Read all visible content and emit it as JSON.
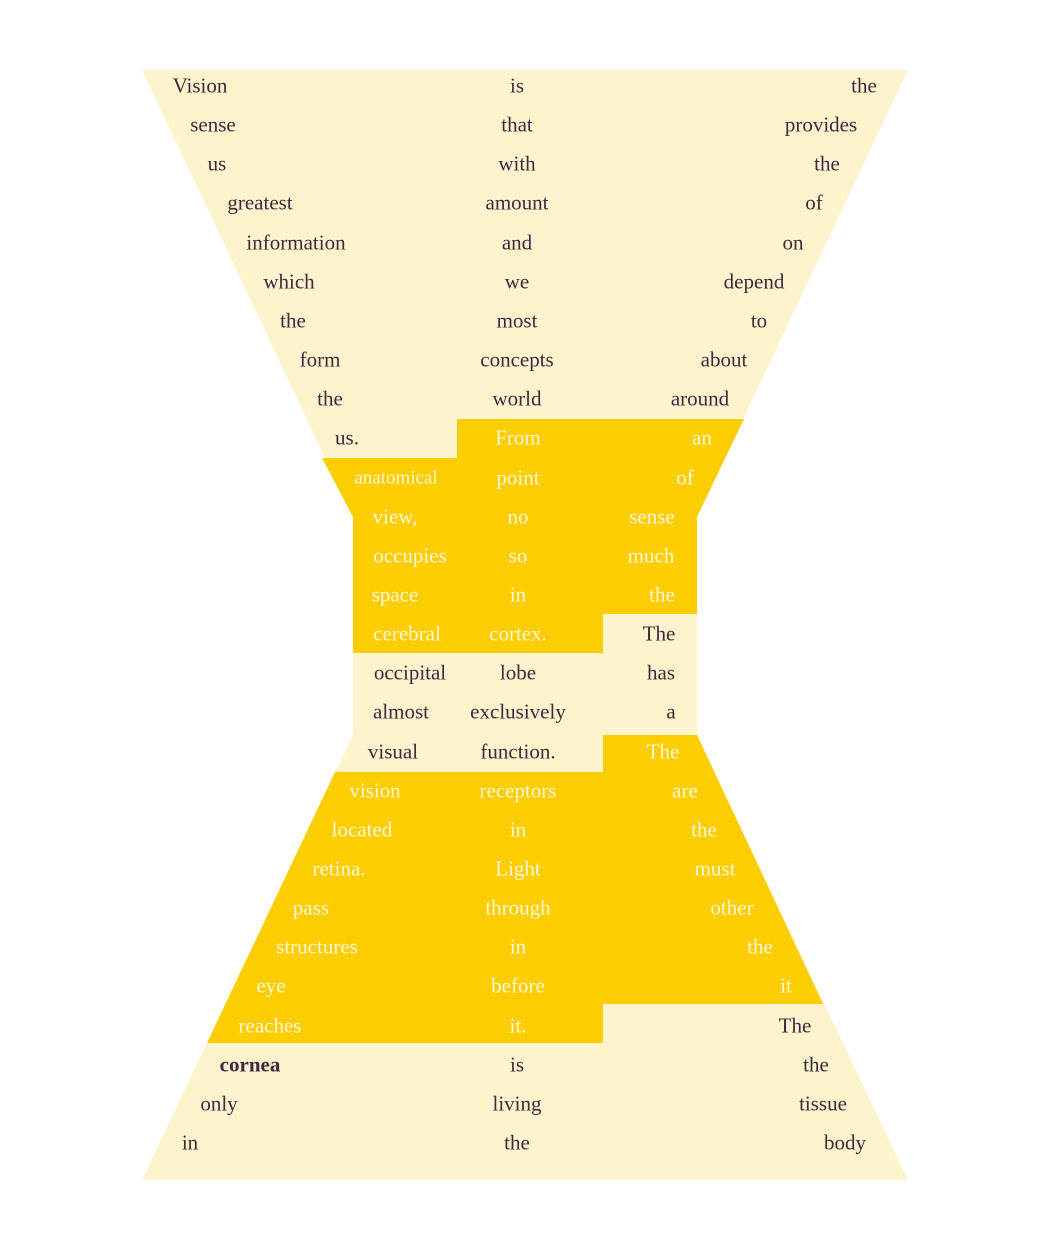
{
  "colors": {
    "cream": "#fdf3cc",
    "gold": "#fccd00",
    "dark_text": "#3a2c40",
    "light_text": "#fff6d6"
  },
  "words": [
    [
      "Vision",
      "is",
      "the"
    ],
    [
      "sense",
      "that",
      "provides"
    ],
    [
      "us",
      "with",
      "the"
    ],
    [
      "greatest",
      "amount",
      "of"
    ],
    [
      "information",
      "and",
      "on"
    ],
    [
      "which",
      "we",
      "depend"
    ],
    [
      "the",
      "most",
      "to"
    ],
    [
      "form",
      "concepts",
      "about"
    ],
    [
      "the",
      "world",
      "around"
    ],
    [
      "us.",
      "From",
      "an"
    ],
    [
      "anatomical",
      "point",
      "of"
    ],
    [
      "view,",
      "no",
      "sense"
    ],
    [
      "occupies",
      "so",
      "much"
    ],
    [
      "space",
      "in",
      "the"
    ],
    [
      "cerebral",
      "cortex.",
      "The"
    ],
    [
      "occipital",
      "lobe",
      "has"
    ],
    [
      "almost",
      "exclusively",
      "a"
    ],
    [
      "visual",
      "function.",
      "The"
    ],
    [
      "vision",
      "receptors",
      "are"
    ],
    [
      "located",
      "in",
      "the"
    ],
    [
      "retina.",
      "Light",
      "must"
    ],
    [
      "pass",
      "through",
      "other"
    ],
    [
      "structures",
      "in",
      "the"
    ],
    [
      "eye",
      "before",
      "it"
    ],
    [
      "reaches",
      "it.",
      "The"
    ],
    [
      "cornea",
      "is",
      "the"
    ],
    [
      "only",
      "living",
      "tissue"
    ],
    [
      "in",
      "the",
      "body"
    ]
  ]
}
